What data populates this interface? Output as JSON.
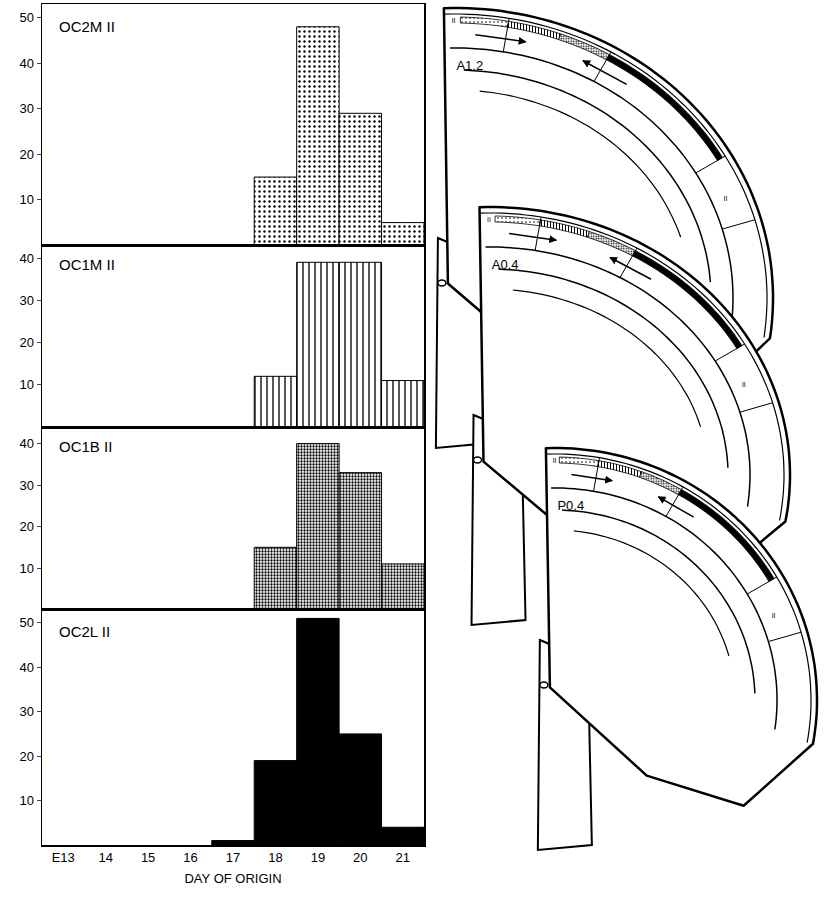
{
  "chart_data": [
    {
      "type": "bar",
      "title": "OC2M II",
      "categories": [
        "E13",
        "14",
        "15",
        "16",
        "17",
        "18",
        "19",
        "20",
        "21"
      ],
      "values": [
        null,
        null,
        null,
        null,
        null,
        15,
        48,
        29,
        5
      ],
      "color": "#000000",
      "marker": "dots",
      "ylim": [
        0,
        53
      ],
      "yticks": [
        10,
        20,
        30,
        40,
        50
      ],
      "tick_labels": "y"
    },
    {
      "type": "bar",
      "title": "OC1M II",
      "categories": [
        "E13",
        "14",
        "15",
        "16",
        "17",
        "18",
        "19",
        "20",
        "21"
      ],
      "values": [
        null,
        null,
        null,
        null,
        null,
        12,
        39,
        39,
        11
      ],
      "color": "#000000",
      "marker": "vertical_lines",
      "ylim": [
        0,
        43
      ],
      "yticks": [
        10,
        20,
        30,
        40
      ],
      "tick_labels": "y"
    },
    {
      "type": "bar",
      "title": "OC1B II",
      "categories": [
        "E13",
        "14",
        "15",
        "16",
        "17",
        "18",
        "19",
        "20",
        "21"
      ],
      "values": [
        null,
        null,
        null,
        null,
        null,
        15,
        40,
        33,
        11
      ],
      "color": "#000000",
      "marker": "dense_dots",
      "ylim": [
        0,
        44
      ],
      "yticks": [
        10,
        20,
        30,
        40
      ],
      "tick_labels": "y"
    },
    {
      "type": "bar",
      "title": "OC2L II",
      "categories": [
        "E13",
        "14",
        "15",
        "16",
        "17",
        "18",
        "19",
        "20",
        "21"
      ],
      "values": [
        null,
        null,
        null,
        null,
        1,
        19,
        51,
        25,
        4
      ],
      "color": "#000000",
      "marker": "solid",
      "ylim": [
        0,
        53
      ],
      "yticks": [
        10,
        20,
        30,
        40,
        50
      ],
      "x_label": "DAY OF ORIGIN"
    }
  ],
  "diagram": {
    "sections": [
      {
        "label": "A1.2",
        "layer_labels": [
          "II",
          "II"
        ]
      },
      {
        "label": "A0.4",
        "layer_labels": [
          "II",
          "II"
        ]
      },
      {
        "label": "P0.4",
        "layer_labels": [
          "II",
          "II"
        ]
      }
    ]
  }
}
